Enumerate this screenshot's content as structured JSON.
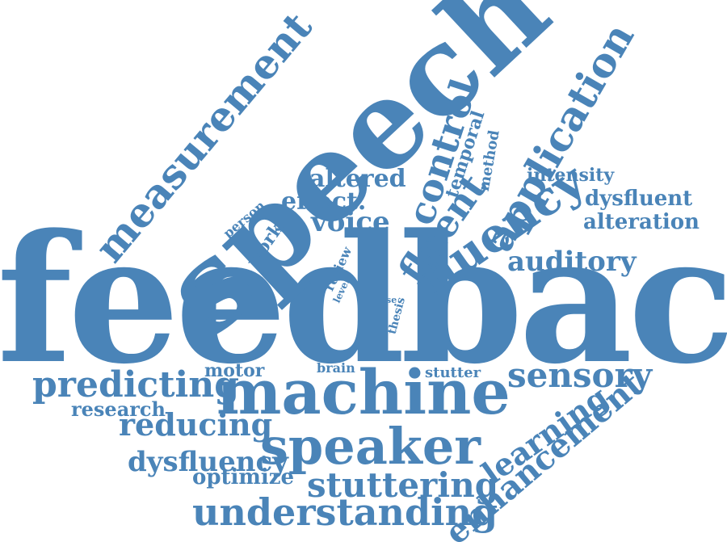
{
  "cloud": {
    "color": "#4a84b8",
    "words": {
      "feedback": "feedback",
      "speech": "speech",
      "machine": "machine",
      "speaker": "speaker",
      "measurement": "measurement",
      "fluency": "fluency",
      "application": "application",
      "control": "control",
      "fluent": "fluent",
      "sensory": "sensory",
      "predicting": "predicting",
      "stuttering": "stuttering",
      "understanding": "understanding",
      "enhancement": "enhancement",
      "auditory": "auditory",
      "reducing": "reducing",
      "learning": "learning",
      "dysfluency": "dysfluency",
      "voice": "voice",
      "altered": "altered",
      "effect": "effect.",
      "dysfluent": "dysfluent",
      "alteration": "alteration",
      "intensity": "intensity",
      "temporal": "temporal",
      "method": "method",
      "research": "research",
      "optimize": "optimize",
      "motor": "motor",
      "work": "work",
      "person": "person",
      "brain": "brain",
      "stutter": "stutter",
      "review": "review",
      "level": "level",
      "use": "use",
      "thesis": "thesis"
    }
  }
}
